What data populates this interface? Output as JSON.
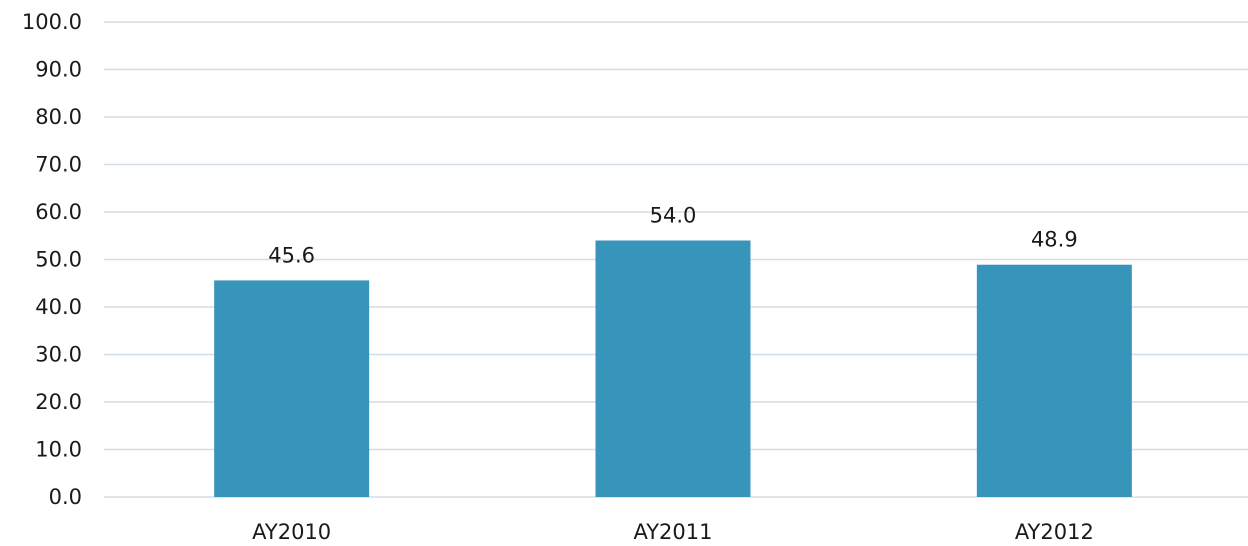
{
  "chart_data": {
    "type": "bar",
    "title": "",
    "xlabel": "",
    "ylabel": "",
    "categories": [
      "AY2010",
      "AY2011",
      "AY2012"
    ],
    "values": [
      45.6,
      54.0,
      48.9
    ],
    "value_labels": [
      "45.6",
      "54.0",
      "48.9"
    ],
    "ylim": [
      0,
      100
    ],
    "yticks": [
      0,
      10,
      20,
      30,
      40,
      50,
      60,
      70,
      80,
      90,
      100
    ],
    "ytick_labels": [
      "0.0",
      "10.0",
      "20.0",
      "30.0",
      "40.0",
      "50.0",
      "60.0",
      "70.0",
      "80.0",
      "90.0",
      "100.0"
    ],
    "grid": true,
    "legend": "none",
    "bar_color": "#3795bb"
  }
}
